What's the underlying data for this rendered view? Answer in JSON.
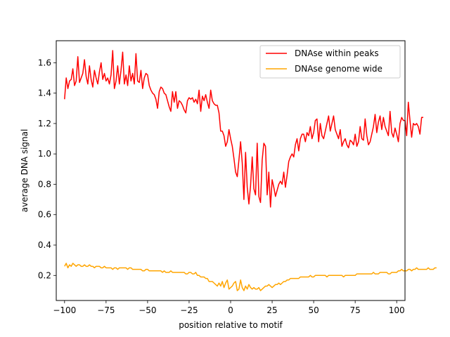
{
  "chart_data": {
    "type": "line",
    "title": "",
    "xlabel": "position relative to motif",
    "ylabel": "average DNA signal",
    "xlim": [
      -105,
      105
    ],
    "ylim": [
      0.035,
      1.745
    ],
    "xticks": [
      -100,
      -75,
      -50,
      -25,
      0,
      25,
      50,
      75,
      100
    ],
    "xtick_labels": [
      "−100",
      "−75",
      "−50",
      "−25",
      "0",
      "25",
      "50",
      "75",
      "100"
    ],
    "yticks": [
      0.2,
      0.4,
      0.6,
      0.8,
      1.0,
      1.2,
      1.4,
      1.6
    ],
    "ytick_labels": [
      "0.2",
      "0.4",
      "0.6",
      "0.8",
      "1.0",
      "1.2",
      "1.4",
      "1.6"
    ],
    "grid": false,
    "legend_position": "top-right",
    "x_start": -100,
    "x_step": 1,
    "series": [
      {
        "name": "DNAse within peaks",
        "color": "#ff0000",
        "values": [
          1.36,
          1.5,
          1.43,
          1.48,
          1.49,
          1.56,
          1.45,
          1.48,
          1.64,
          1.47,
          1.5,
          1.53,
          1.62,
          1.51,
          1.46,
          1.58,
          1.49,
          1.44,
          1.55,
          1.5,
          1.46,
          1.54,
          1.6,
          1.49,
          1.53,
          1.48,
          1.5,
          1.46,
          1.52,
          1.68,
          1.43,
          1.48,
          1.58,
          1.46,
          1.55,
          1.67,
          1.46,
          1.52,
          1.45,
          1.58,
          1.48,
          1.53,
          1.46,
          1.66,
          1.48,
          1.47,
          1.55,
          1.43,
          1.5,
          1.53,
          1.52,
          1.45,
          1.42,
          1.4,
          1.39,
          1.36,
          1.3,
          1.41,
          1.44,
          1.43,
          1.4,
          1.39,
          1.35,
          1.31,
          1.28,
          1.41,
          1.34,
          1.41,
          1.3,
          1.35,
          1.34,
          1.32,
          1.29,
          1.27,
          1.35,
          1.37,
          1.36,
          1.37,
          1.34,
          1.36,
          1.33,
          1.42,
          1.28,
          1.38,
          1.35,
          1.39,
          1.34,
          1.3,
          1.42,
          1.35,
          1.33,
          1.32,
          1.32,
          1.27,
          1.15,
          1.15,
          1.12,
          1.05,
          1.08,
          1.16,
          1.1,
          1.05,
          0.97,
          0.88,
          0.85,
          0.96,
          1.08,
          0.94,
          0.7,
          1.01,
          0.78,
          0.67,
          0.79,
          0.98,
          0.77,
          0.73,
          1.07,
          0.72,
          0.68,
          0.96,
          1.07,
          1.05,
          0.73,
          0.88,
          0.65,
          0.83,
          0.78,
          0.72,
          0.76,
          0.8,
          0.82,
          0.8,
          0.88,
          0.78,
          0.86,
          0.95,
          0.98,
          1.0,
          0.98,
          1.06,
          1.1,
          1.02,
          1.1,
          1.13,
          1.13,
          1.08,
          1.14,
          1.12,
          1.18,
          1.1,
          1.14,
          1.22,
          1.23,
          1.08,
          1.2,
          1.12,
          1.1,
          1.15,
          1.2,
          1.25,
          1.15,
          1.2,
          1.25,
          1.16,
          1.13,
          1.1,
          1.16,
          1.05,
          1.08,
          1.1,
          1.06,
          1.04,
          1.09,
          1.08,
          1.06,
          1.13,
          1.05,
          1.08,
          1.18,
          1.1,
          1.09,
          1.23,
          1.12,
          1.06,
          1.08,
          1.13,
          1.18,
          1.26,
          1.14,
          1.21,
          1.25,
          1.16,
          1.24,
          1.18,
          1.15,
          1.12,
          1.28,
          1.14,
          1.11,
          1.17,
          1.13,
          1.08,
          1.2,
          1.24,
          1.22,
          1.22,
          1.12,
          1.34,
          1.22,
          1.11,
          1.2,
          1.19,
          1.2,
          1.18,
          1.13,
          1.24,
          1.24
        ]
      },
      {
        "name": "DNAse genome wide",
        "color": "#ffa500",
        "values": [
          0.26,
          0.28,
          0.25,
          0.27,
          0.26,
          0.28,
          0.27,
          0.26,
          0.27,
          0.27,
          0.26,
          0.26,
          0.27,
          0.26,
          0.26,
          0.27,
          0.26,
          0.26,
          0.25,
          0.26,
          0.26,
          0.26,
          0.25,
          0.25,
          0.26,
          0.25,
          0.25,
          0.25,
          0.25,
          0.24,
          0.25,
          0.25,
          0.24,
          0.25,
          0.25,
          0.25,
          0.25,
          0.25,
          0.24,
          0.25,
          0.25,
          0.24,
          0.24,
          0.24,
          0.24,
          0.24,
          0.24,
          0.23,
          0.23,
          0.24,
          0.24,
          0.23,
          0.23,
          0.23,
          0.23,
          0.23,
          0.23,
          0.23,
          0.23,
          0.22,
          0.23,
          0.22,
          0.22,
          0.22,
          0.23,
          0.22,
          0.22,
          0.22,
          0.22,
          0.22,
          0.22,
          0.22,
          0.22,
          0.21,
          0.21,
          0.22,
          0.22,
          0.21,
          0.21,
          0.22,
          0.2,
          0.2,
          0.19,
          0.19,
          0.19,
          0.18,
          0.18,
          0.16,
          0.16,
          0.16,
          0.15,
          0.14,
          0.13,
          0.15,
          0.13,
          0.16,
          0.12,
          0.15,
          0.17,
          0.11,
          0.12,
          0.13,
          0.15,
          0.16,
          0.1,
          0.11,
          0.17,
          0.12,
          0.1,
          0.13,
          0.11,
          0.14,
          0.12,
          0.11,
          0.12,
          0.11,
          0.11,
          0.12,
          0.1,
          0.11,
          0.12,
          0.13,
          0.13,
          0.14,
          0.13,
          0.12,
          0.13,
          0.14,
          0.14,
          0.15,
          0.14,
          0.15,
          0.16,
          0.16,
          0.17,
          0.17,
          0.18,
          0.18,
          0.18,
          0.18,
          0.18,
          0.18,
          0.19,
          0.19,
          0.19,
          0.19,
          0.19,
          0.19,
          0.2,
          0.19,
          0.19,
          0.2,
          0.2,
          0.2,
          0.2,
          0.2,
          0.2,
          0.2,
          0.19,
          0.2,
          0.2,
          0.2,
          0.2,
          0.2,
          0.2,
          0.2,
          0.2,
          0.2,
          0.19,
          0.2,
          0.2,
          0.2,
          0.2,
          0.2,
          0.2,
          0.2,
          0.21,
          0.21,
          0.21,
          0.21,
          0.21,
          0.21,
          0.21,
          0.21,
          0.21,
          0.21,
          0.22,
          0.21,
          0.21,
          0.21,
          0.22,
          0.22,
          0.22,
          0.22,
          0.22,
          0.21,
          0.21,
          0.22,
          0.22,
          0.22,
          0.22,
          0.23,
          0.23,
          0.24,
          0.23,
          0.23,
          0.23,
          0.24,
          0.24,
          0.23,
          0.24,
          0.24,
          0.25,
          0.24,
          0.24,
          0.24,
          0.24,
          0.24,
          0.24,
          0.25,
          0.24,
          0.24,
          0.24,
          0.25,
          0.25
        ]
      }
    ]
  }
}
